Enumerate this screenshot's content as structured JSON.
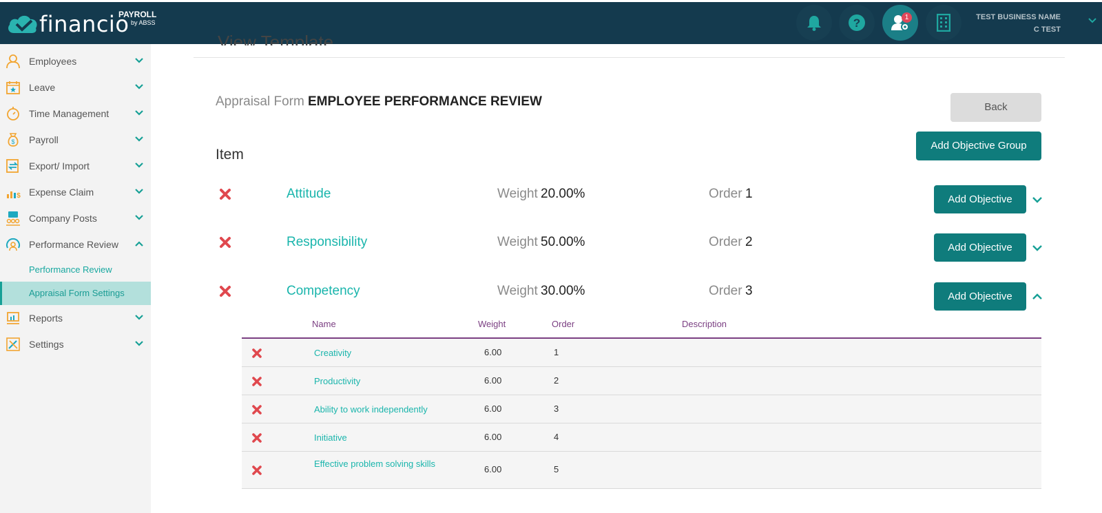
{
  "header": {
    "logo_text": "financio",
    "logo_payroll": "PAYROLL",
    "logo_by": "by ABSS",
    "notification_badge": "1",
    "business_name": "TEST BUSINESS NAME",
    "user_name": "C TEST"
  },
  "sidebar": {
    "items": [
      {
        "label": "Employees",
        "icon": "user-icon"
      },
      {
        "label": "Leave",
        "icon": "calendar-icon"
      },
      {
        "label": "Time Management",
        "icon": "stopwatch-icon"
      },
      {
        "label": "Payroll",
        "icon": "money-bag-icon"
      },
      {
        "label": "Export/ Import",
        "icon": "export-import-icon"
      },
      {
        "label": "Expense Claim",
        "icon": "expense-chart-icon"
      },
      {
        "label": "Company Posts",
        "icon": "company-posts-icon"
      },
      {
        "label": "Performance Review",
        "icon": "performance-icon"
      },
      {
        "label": "Reports",
        "icon": "reports-icon"
      },
      {
        "label": "Settings",
        "icon": "settings-tools-icon"
      }
    ],
    "sub_items": [
      {
        "label": "Performance Review"
      },
      {
        "label": "Appraisal Form Settings"
      }
    ]
  },
  "main": {
    "page_title_partial": "View Template",
    "form_label": "Appraisal Form",
    "form_name": "EMPLOYEE PERFORMANCE REVIEW",
    "back_label": "Back",
    "add_group_label": "Add Objective Group",
    "item_heading": "Item",
    "weight_label": "Weight",
    "order_label": "Order",
    "add_objective_label": "Add Objective",
    "groups": [
      {
        "name": "Attitude",
        "weight": "20.00%",
        "order": "1"
      },
      {
        "name": "Responsibility",
        "weight": "50.00%",
        "order": "2"
      },
      {
        "name": "Competency",
        "weight": "30.00%",
        "order": "3"
      }
    ],
    "table": {
      "headers": {
        "name": "Name",
        "weight": "Weight",
        "order": "Order",
        "description": "Description"
      },
      "rows": [
        {
          "name": "Creativity",
          "weight": "6.00",
          "order": "1"
        },
        {
          "name": "Productivity",
          "weight": "6.00",
          "order": "2"
        },
        {
          "name": "Ability to work independently",
          "weight": "6.00",
          "order": "3"
        },
        {
          "name": "Initiative",
          "weight": "6.00",
          "order": "4"
        },
        {
          "name": "Effective problem solving skills",
          "weight": "6.00",
          "order": "5"
        }
      ]
    }
  },
  "colors": {
    "header_bg": "#143a4e",
    "teal_button": "#0f7c7c",
    "accent_text": "#1ab5ac",
    "delete_red": "#e0484e",
    "table_header": "#7b3f82",
    "selected_sub_bg": "#b3e0dc"
  }
}
